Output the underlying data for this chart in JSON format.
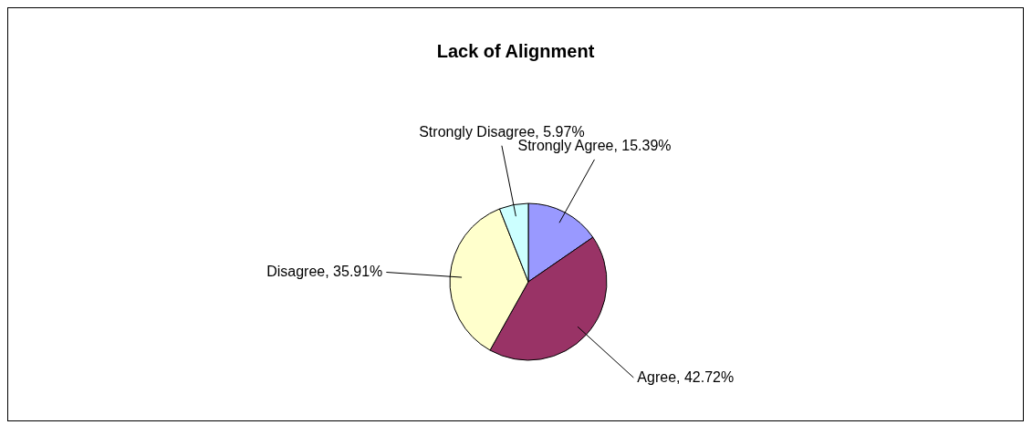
{
  "chart_data": {
    "type": "pie",
    "title": "Lack of Alignment",
    "categories": [
      "Strongly Agree",
      "Agree",
      "Disagree",
      "Strongly Disagree"
    ],
    "values": [
      15.39,
      42.72,
      35.91,
      5.97
    ],
    "value_labels": [
      "15.39%",
      "42.72%",
      "35.91%",
      "5.97%"
    ],
    "colors": [
      "#9999ff",
      "#993366",
      "#ffffcc",
      "#ccffff"
    ],
    "legend": false
  }
}
